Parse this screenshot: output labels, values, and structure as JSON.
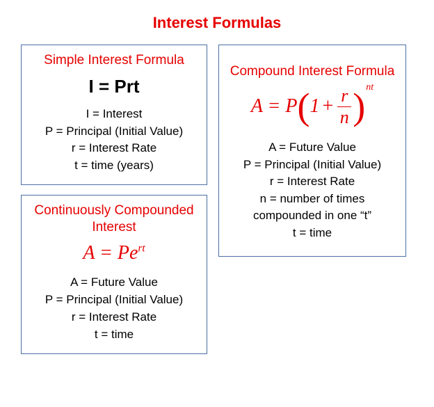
{
  "title": "Interest Formulas",
  "colors": {
    "accent": "#e60000",
    "border": "#4a6fa5",
    "text": "#000000",
    "background": "#ffffff"
  },
  "simple": {
    "title": "Simple Interest Formula",
    "formula": "I = Prt",
    "defs": [
      "I = Interest",
      "P = Principal (Initial Value)",
      "r = Interest Rate",
      "t = time (years)"
    ]
  },
  "continuous": {
    "title": "Continuously Compounded Interest",
    "formula_base": "A = Pe",
    "formula_exp": "rt",
    "defs": [
      "A = Future Value",
      "P = Principal (Initial Value)",
      "r = Interest Rate",
      "t = time"
    ]
  },
  "compound": {
    "title": "Compound Interest Formula",
    "lhs": "A = P",
    "paren_open": "(",
    "one": "1",
    "plus": "+",
    "frac_num": "r",
    "frac_den": "n",
    "paren_close": ")",
    "exp": "nt",
    "defs": [
      "A = Future  Value",
      "P = Principal (Initial Value)",
      "r = Interest Rate",
      "n = number of times compounded in one “t”",
      "t = time"
    ]
  }
}
